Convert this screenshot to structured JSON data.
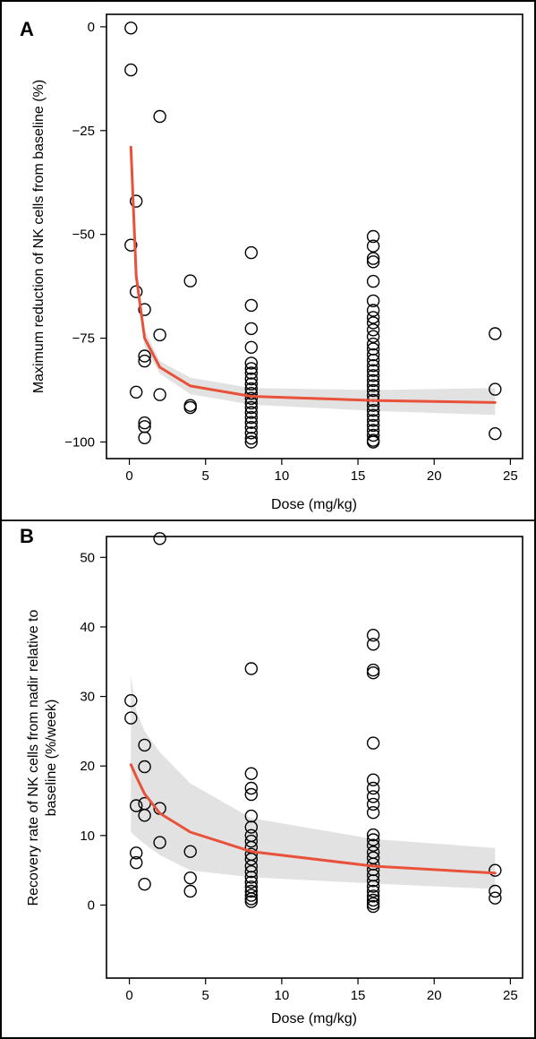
{
  "chart_data": [
    {
      "type": "scatter",
      "panel_label": "A",
      "xlabel": "Dose (mg/kg)",
      "ylabel": "Maximum reduction of NK cells from baseline (%)",
      "xlim": [
        -1.5,
        25.8
      ],
      "ylim": [
        -104,
        3
      ],
      "xticks": [
        0,
        5,
        10,
        15,
        20,
        25
      ],
      "xtick_labels": [
        "0",
        "5",
        "10",
        "15",
        "20",
        "25"
      ],
      "yticks": [
        0,
        -25,
        -50,
        -75,
        -100
      ],
      "ytick_labels": [
        "0",
        "−25",
        "−50",
        "−75",
        "−100"
      ],
      "grid": false,
      "colors": {
        "fit_line": "#e8513a",
        "ci_band": "#e2e2e2",
        "points": "#000000"
      },
      "points": [
        [
          0.1,
          -0.3
        ],
        [
          0.1,
          -10.4
        ],
        [
          0.1,
          -52.6
        ],
        [
          0.45,
          -42.0
        ],
        [
          0.45,
          -63.8
        ],
        [
          0.45,
          -88.0
        ],
        [
          1.0,
          -68.1
        ],
        [
          1.0,
          -79.3
        ],
        [
          1.0,
          -80.5
        ],
        [
          1.0,
          -95.4
        ],
        [
          1.0,
          -96.3
        ],
        [
          1.0,
          -99.0
        ],
        [
          2.0,
          -21.6
        ],
        [
          2.0,
          -74.2
        ],
        [
          2.0,
          -88.6
        ],
        [
          4.0,
          -61.2
        ],
        [
          4.0,
          -91.2
        ],
        [
          4.0,
          -91.7
        ],
        [
          8.0,
          -54.4
        ],
        [
          8.0,
          -67.1
        ],
        [
          8.0,
          -72.7
        ],
        [
          8.0,
          -77.2
        ],
        [
          8.0,
          -81.0
        ],
        [
          8.0,
          -82.3
        ],
        [
          8.0,
          -83.4
        ],
        [
          8.0,
          -84.8
        ],
        [
          8.0,
          -86.0
        ],
        [
          8.0,
          -87.2
        ],
        [
          8.0,
          -88.3
        ],
        [
          8.0,
          -89.5
        ],
        [
          8.0,
          -90.6
        ],
        [
          8.0,
          -91.7
        ],
        [
          8.0,
          -92.9
        ],
        [
          8.0,
          -94.1
        ],
        [
          8.0,
          -95.3
        ],
        [
          8.0,
          -96.5
        ],
        [
          8.0,
          -97.8
        ],
        [
          8.0,
          -99.1
        ],
        [
          8.0,
          -100.0
        ],
        [
          16.0,
          -50.5
        ],
        [
          16.0,
          -52.8
        ],
        [
          16.0,
          -55.8
        ],
        [
          16.0,
          -56.6
        ],
        [
          16.0,
          -61.3
        ],
        [
          16.0,
          -66.0
        ],
        [
          16.0,
          -68.3
        ],
        [
          16.0,
          -70.0
        ],
        [
          16.0,
          -71.3
        ],
        [
          16.0,
          -73.0
        ],
        [
          16.0,
          -74.6
        ],
        [
          16.0,
          -76.4
        ],
        [
          16.0,
          -77.6
        ],
        [
          16.0,
          -79.0
        ],
        [
          16.0,
          -80.3
        ],
        [
          16.0,
          -81.6
        ],
        [
          16.0,
          -82.8
        ],
        [
          16.0,
          -84.0
        ],
        [
          16.0,
          -85.2
        ],
        [
          16.0,
          -86.4
        ],
        [
          16.0,
          -87.6
        ],
        [
          16.0,
          -88.8
        ],
        [
          16.0,
          -90.0
        ],
        [
          16.0,
          -91.2
        ],
        [
          16.0,
          -92.4
        ],
        [
          16.0,
          -93.6
        ],
        [
          16.0,
          -94.8
        ],
        [
          16.0,
          -96.0
        ],
        [
          16.0,
          -97.2
        ],
        [
          16.0,
          -98.4
        ],
        [
          16.0,
          -99.6
        ],
        [
          16.0,
          -100.0
        ],
        [
          24.0,
          -73.9
        ],
        [
          24.0,
          -87.3
        ],
        [
          24.0,
          -98.0
        ]
      ],
      "fit": {
        "x": [
          0.1,
          0.45,
          1.0,
          2.0,
          4.0,
          8.0,
          16.0,
          24.0
        ],
        "y": [
          -29.0,
          -60.0,
          -75.0,
          -82.0,
          -86.5,
          -89.0,
          -90.0,
          -90.5
        ]
      },
      "ci": {
        "x": [
          0.1,
          0.45,
          1.0,
          2.0,
          4.0,
          8.0,
          16.0,
          24.0
        ],
        "upper": [
          -28.0,
          -58.0,
          -73.0,
          -80.5,
          -84.5,
          -87.0,
          -87.5,
          -87.0
        ],
        "lower": [
          -30.5,
          -62.0,
          -77.0,
          -83.5,
          -88.5,
          -91.0,
          -92.5,
          -93.5
        ]
      }
    },
    {
      "type": "scatter",
      "panel_label": "B",
      "xlabel": "Dose (mg/kg)",
      "ylabel": "Recovery rate of NK cells from nadir relative to baseline (%/week)",
      "xlim": [
        -1.5,
        25.8
      ],
      "ylim": [
        -10.5,
        53
      ],
      "xticks": [
        0,
        5,
        10,
        15,
        20,
        25
      ],
      "xtick_labels": [
        "0",
        "5",
        "10",
        "15",
        "20",
        "25"
      ],
      "yticks": [
        0,
        10,
        20,
        30,
        40,
        50
      ],
      "ytick_labels": [
        "0",
        "10",
        "20",
        "30",
        "40",
        "50"
      ],
      "grid": false,
      "colors": {
        "fit_line": "#e8513a",
        "ci_band": "#e2e2e2",
        "points": "#000000"
      },
      "points": [
        [
          0.1,
          29.4
        ],
        [
          0.1,
          26.9
        ],
        [
          0.45,
          14.3
        ],
        [
          0.45,
          7.5
        ],
        [
          0.45,
          6.1
        ],
        [
          1.0,
          23.0
        ],
        [
          1.0,
          19.9
        ],
        [
          1.0,
          14.6
        ],
        [
          1.0,
          12.9
        ],
        [
          1.0,
          3.0
        ],
        [
          2.0,
          52.7
        ],
        [
          2.0,
          13.9
        ],
        [
          2.0,
          9.0
        ],
        [
          4.0,
          7.7
        ],
        [
          4.0,
          3.9
        ],
        [
          4.0,
          2.0
        ],
        [
          8.0,
          34.0
        ],
        [
          8.0,
          18.9
        ],
        [
          8.0,
          16.8
        ],
        [
          8.0,
          15.9
        ],
        [
          8.0,
          12.8
        ],
        [
          8.0,
          11.2
        ],
        [
          8.0,
          10.0
        ],
        [
          8.0,
          9.2
        ],
        [
          8.0,
          8.3
        ],
        [
          8.0,
          7.3
        ],
        [
          8.0,
          6.6
        ],
        [
          8.0,
          5.6
        ],
        [
          8.0,
          4.8
        ],
        [
          8.0,
          4.0
        ],
        [
          8.0,
          3.3
        ],
        [
          8.0,
          2.6
        ],
        [
          8.0,
          2.0
        ],
        [
          8.0,
          1.4
        ],
        [
          8.0,
          0.9
        ],
        [
          8.0,
          0.5
        ],
        [
          16.0,
          38.8
        ],
        [
          16.0,
          37.5
        ],
        [
          16.0,
          33.8
        ],
        [
          16.0,
          33.4
        ],
        [
          16.0,
          23.3
        ],
        [
          16.0,
          18.0
        ],
        [
          16.0,
          16.8
        ],
        [
          16.0,
          15.6
        ],
        [
          16.0,
          14.5
        ],
        [
          16.0,
          13.3
        ],
        [
          16.0,
          10.1
        ],
        [
          16.0,
          9.4
        ],
        [
          16.0,
          8.6
        ],
        [
          16.0,
          7.6
        ],
        [
          16.0,
          6.8
        ],
        [
          16.0,
          5.9
        ],
        [
          16.0,
          5.1
        ],
        [
          16.0,
          4.3
        ],
        [
          16.0,
          3.5
        ],
        [
          16.0,
          2.7
        ],
        [
          16.0,
          2.0
        ],
        [
          16.0,
          1.3
        ],
        [
          16.0,
          0.7
        ],
        [
          16.0,
          0.2
        ],
        [
          16.0,
          -0.2
        ],
        [
          24.0,
          5.0
        ],
        [
          24.0,
          2.0
        ],
        [
          24.0,
          1.0
        ]
      ],
      "fit": {
        "x": [
          0.1,
          0.45,
          1.0,
          2.0,
          4.0,
          8.0,
          16.0,
          24.0
        ],
        "y": [
          20.2,
          18.5,
          16.0,
          13.2,
          10.5,
          7.7,
          5.6,
          4.6
        ]
      },
      "ci": {
        "x": [
          0.1,
          0.45,
          1.0,
          2.0,
          4.0,
          8.0,
          16.0,
          24.0
        ],
        "upper": [
          33.0,
          28.0,
          25.0,
          22.0,
          17.5,
          12.5,
          9.5,
          8.2
        ],
        "lower": [
          10.5,
          9.8,
          8.8,
          7.2,
          5.0,
          4.0,
          3.1,
          2.3
        ]
      }
    }
  ]
}
